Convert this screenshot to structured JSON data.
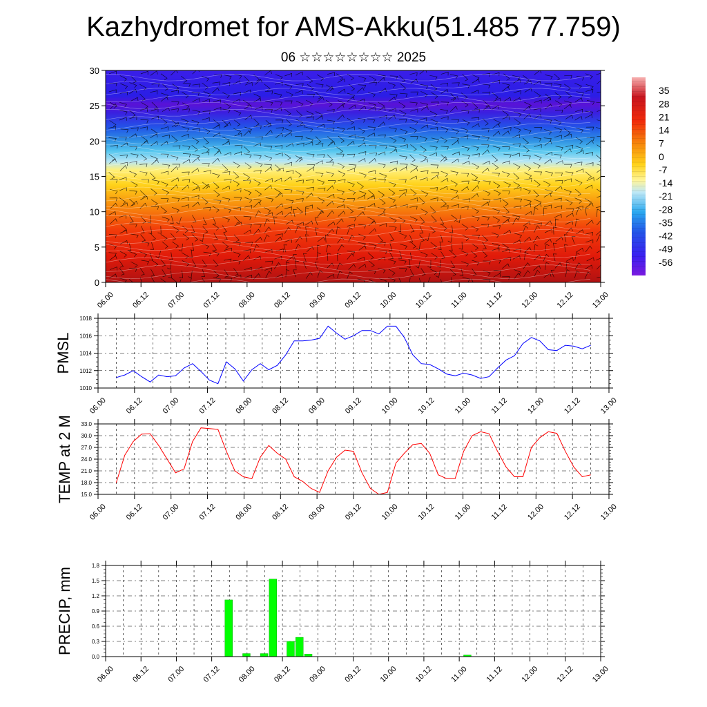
{
  "title": "Kazhydromet for AMS-Akku(51.485 77.759)",
  "subtitle": "06 ☆☆☆☆☆☆☆☆ 2025",
  "time_ticks": [
    "06.00",
    "06.12",
    "07.00",
    "07.12",
    "08.00",
    "08.12",
    "09.00",
    "09.12",
    "10.00",
    "10.12",
    "11.00",
    "11.12",
    "12.00",
    "12.12",
    "13.00"
  ],
  "colors": {
    "pmsl": "#0000ff",
    "temp": "#ff0000",
    "precip": "#00ff00",
    "grid": "#000000"
  },
  "chart_data": [
    {
      "name": "vertical-cross-section",
      "type": "heatmap",
      "ylim": [
        0,
        30
      ],
      "yticks": [
        0,
        5,
        10,
        15,
        20,
        25,
        30
      ],
      "colorbar_labels": [
        "35",
        "28",
        "21",
        "14",
        "7",
        "0",
        "-7",
        "-14",
        "-21",
        "-28",
        "-35",
        "-42",
        "-49",
        "-56"
      ],
      "colorbar_range": [
        -63,
        42
      ],
      "colormap": "blue-cyan-yellow-red",
      "overlays": "wind barbs and isotherm contours"
    },
    {
      "name": "pmsl",
      "type": "line",
      "ylabel": "PMSL",
      "ylim": [
        1010,
        1018
      ],
      "yticks": [
        "1010",
        "1012",
        "1014",
        "1016",
        "1018"
      ],
      "values": [
        1011.2,
        1011.5,
        1012.0,
        1011.3,
        1010.7,
        1011.5,
        1011.3,
        1011.4,
        1012.3,
        1012.8,
        1011.9,
        1010.9,
        1010.5,
        1013.0,
        1012.2,
        1010.8,
        1012.1,
        1012.8,
        1012.1,
        1012.6,
        1013.8,
        1015.4,
        1015.4,
        1015.5,
        1015.7,
        1017.1,
        1016.3,
        1015.6,
        1016.0,
        1016.6,
        1016.6,
        1016.2,
        1017.1,
        1017.1,
        1015.8,
        1013.8,
        1012.8,
        1012.7,
        1012.2,
        1011.6,
        1011.4,
        1011.7,
        1011.5,
        1011.1,
        1011.3,
        1012.3,
        1013.2,
        1013.7,
        1015.1,
        1015.8,
        1015.4,
        1014.4,
        1014.3,
        1014.9,
        1014.8,
        1014.5,
        1014.9
      ]
    },
    {
      "name": "temp-2m",
      "type": "line",
      "ylabel": "TEMP at 2 M",
      "ylim": [
        15,
        33
      ],
      "yticks": [
        "15.0",
        "18.0",
        "21.0",
        "24.0",
        "27.0",
        "30.0",
        "33.0"
      ],
      "values": [
        18.0,
        25.0,
        28.5,
        30.4,
        30.5,
        27.5,
        24.0,
        20.5,
        21.5,
        28.5,
        32.0,
        31.8,
        31.6,
        26.0,
        21.0,
        19.5,
        19.0,
        24.5,
        27.5,
        25.5,
        24.0,
        19.5,
        18.3,
        16.5,
        15.5,
        21.0,
        24.5,
        26.3,
        26.0,
        20.5,
        16.5,
        15.0,
        15.5,
        23.0,
        25.5,
        27.7,
        28.0,
        25.5,
        20.0,
        19.0,
        19.0,
        26.0,
        30.0,
        31.0,
        30.5,
        26.0,
        22.0,
        19.5,
        19.5,
        27.0,
        29.5,
        31.0,
        30.6,
        26.0,
        22.0,
        19.5,
        20.0
      ]
    },
    {
      "name": "precip",
      "type": "bar",
      "ylabel": "PRECIP, mm",
      "ylim": [
        0,
        1.8
      ],
      "yticks": [
        "0.0",
        "0.3",
        "0.6",
        "0.9",
        "1.2",
        "1.5",
        "1.8"
      ],
      "bars": [
        {
          "t": 14,
          "v": 1.12
        },
        {
          "t": 16,
          "v": 0.06
        },
        {
          "t": 18,
          "v": 0.06
        },
        {
          "t": 19,
          "v": 1.53
        },
        {
          "t": 21,
          "v": 0.3
        },
        {
          "t": 22,
          "v": 0.38
        },
        {
          "t": 23,
          "v": 0.05
        },
        {
          "t": 41,
          "v": 0.03
        }
      ]
    }
  ]
}
